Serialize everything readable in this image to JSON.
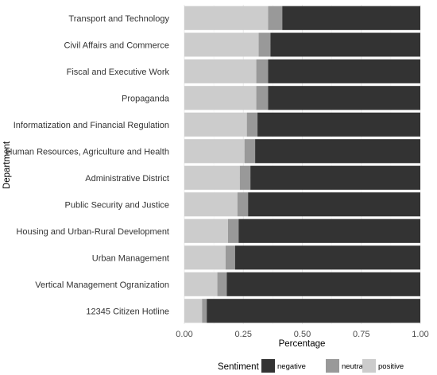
{
  "chart_data": {
    "type": "bar",
    "orientation": "horizontal",
    "stacked": true,
    "xlabel": "Percentage",
    "ylabel": "Department",
    "xlim": [
      0,
      1
    ],
    "x_ticks": [
      "0.00",
      "0.25",
      "0.50",
      "0.75",
      "1.00"
    ],
    "grid": true,
    "legend_position": "bottom",
    "categories": [
      "Transport and Technology",
      "Civil Affairs and Commerce",
      "Fiscal and Executive Work",
      "Propaganda",
      "Informatization and Financial Regulation",
      "Human Resources, Agriculture and Health",
      "Administrative District",
      "Public Security and Justice",
      "Housing and Urban-Rural Development",
      "Urban Management",
      "Vertical Management Ogranization",
      "12345 Citizen Hotline"
    ],
    "series": [
      {
        "name": "negative",
        "color": "#333333",
        "values": [
          0.585,
          0.635,
          0.645,
          0.645,
          0.69,
          0.7,
          0.72,
          0.73,
          0.77,
          0.785,
          0.82,
          0.905
        ]
      },
      {
        "name": "neutral",
        "color": "#999999",
        "values": [
          0.06,
          0.05,
          0.05,
          0.05,
          0.045,
          0.045,
          0.045,
          0.045,
          0.045,
          0.04,
          0.04,
          0.02
        ]
      },
      {
        "name": "positive",
        "color": "#cccccc",
        "values": [
          0.355,
          0.315,
          0.305,
          0.305,
          0.265,
          0.255,
          0.235,
          0.225,
          0.185,
          0.175,
          0.14,
          0.075
        ]
      }
    ],
    "legend": {
      "title": "Sentiment",
      "entries": [
        "negative",
        "neutral",
        "positive"
      ]
    }
  }
}
